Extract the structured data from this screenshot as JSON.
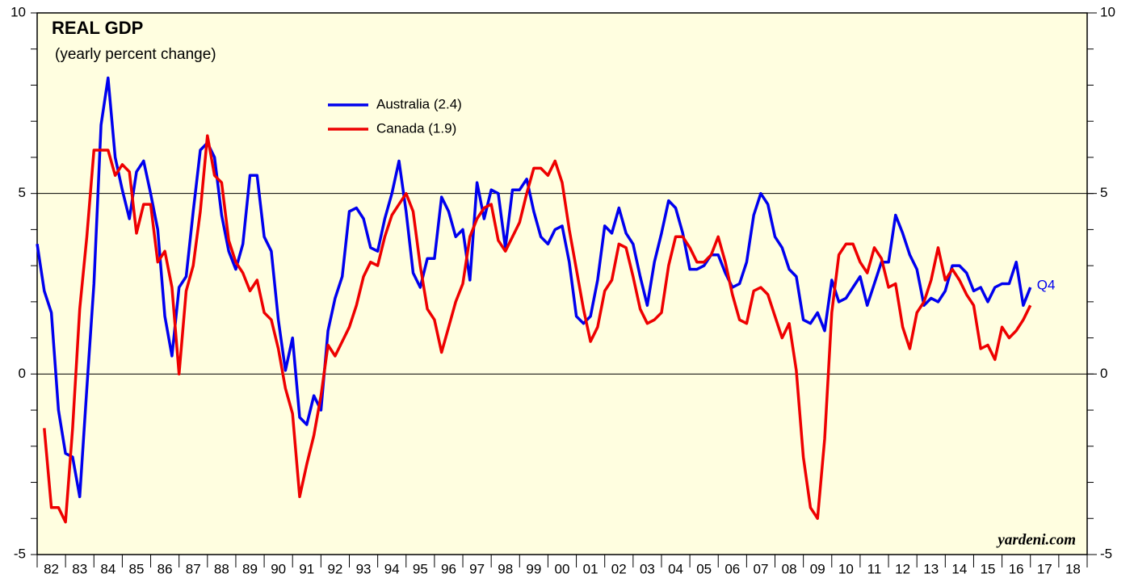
{
  "chart_data": {
    "type": "line",
    "title": "REAL GDP",
    "subtitle": "(yearly percent change)",
    "annotation": "Q4",
    "source": "yardeni.com",
    "x": [
      1982,
      1982.25,
      1982.5,
      1982.75,
      1983,
      1983.25,
      1983.5,
      1983.75,
      1984,
      1984.25,
      1984.5,
      1984.75,
      1985,
      1985.25,
      1985.5,
      1985.75,
      1986,
      1986.25,
      1986.5,
      1986.75,
      1987,
      1987.25,
      1987.5,
      1987.75,
      1988,
      1988.25,
      1988.5,
      1988.75,
      1989,
      1989.25,
      1989.5,
      1989.75,
      1990,
      1990.25,
      1990.5,
      1990.75,
      1991,
      1991.25,
      1991.5,
      1991.75,
      1992,
      1992.25,
      1992.5,
      1992.75,
      1993,
      1993.25,
      1993.5,
      1993.75,
      1994,
      1994.25,
      1994.5,
      1994.75,
      1995,
      1995.25,
      1995.5,
      1995.75,
      1996,
      1996.25,
      1996.5,
      1996.75,
      1997,
      1997.25,
      1997.5,
      1997.75,
      1998,
      1998.25,
      1998.5,
      1998.75,
      1999,
      1999.25,
      1999.5,
      1999.75,
      2000,
      2000.25,
      2000.5,
      2000.75,
      2001,
      2001.25,
      2001.5,
      2001.75,
      2002,
      2002.25,
      2002.5,
      2002.75,
      2003,
      2003.25,
      2003.5,
      2003.75,
      2004,
      2004.25,
      2004.5,
      2004.75,
      2005,
      2005.25,
      2005.5,
      2005.75,
      2006,
      2006.25,
      2006.5,
      2006.75,
      2007,
      2007.25,
      2007.5,
      2007.75,
      2008,
      2008.25,
      2008.5,
      2008.75,
      2009,
      2009.25,
      2009.5,
      2009.75,
      2010,
      2010.25,
      2010.5,
      2010.75,
      2011,
      2011.25,
      2011.5,
      2011.75,
      2012,
      2012.25,
      2012.5,
      2012.75,
      2013,
      2013.25,
      2013.5,
      2013.75,
      2014,
      2014.25,
      2014.5,
      2014.75,
      2015,
      2015.25,
      2015.5,
      2015.75,
      2016,
      2016.25,
      2016.5,
      2016.75,
      2017
    ],
    "series": [
      {
        "name": "Australia (2.4)",
        "color": "#0000ee",
        "values": [
          3.6,
          2.3,
          1.7,
          -1.0,
          -2.2,
          -2.3,
          -3.4,
          -0.4,
          2.5,
          6.9,
          8.2,
          6.0,
          5.1,
          4.3,
          5.6,
          5.9,
          5.0,
          4.0,
          1.6,
          0.5,
          2.4,
          2.7,
          4.5,
          6.2,
          6.4,
          6.0,
          4.4,
          3.4,
          2.9,
          3.6,
          5.5,
          5.5,
          3.8,
          3.4,
          1.5,
          0.1,
          1.0,
          -1.2,
          -1.4,
          -0.6,
          -1.0,
          1.2,
          2.1,
          2.7,
          4.5,
          4.6,
          4.3,
          3.5,
          3.4,
          4.3,
          5.0,
          5.9,
          4.5,
          2.8,
          2.4,
          3.2,
          3.2,
          4.9,
          4.5,
          3.8,
          4.0,
          2.6,
          5.3,
          4.3,
          5.1,
          5.0,
          3.5,
          5.1,
          5.1,
          5.4,
          4.5,
          3.8,
          3.6,
          4.0,
          4.1,
          3.1,
          1.6,
          1.4,
          1.6,
          2.6,
          4.1,
          3.9,
          4.6,
          3.9,
          3.6,
          2.7,
          1.9,
          3.1,
          3.9,
          4.8,
          4.6,
          3.9,
          2.9,
          2.9,
          3.0,
          3.3,
          3.3,
          2.8,
          2.4,
          2.5,
          3.1,
          4.4,
          5.0,
          4.7,
          3.8,
          3.5,
          2.9,
          2.7,
          1.5,
          1.4,
          1.7,
          1.2,
          2.6,
          2.0,
          2.1,
          2.4,
          2.7,
          1.9,
          2.5,
          3.1,
          3.1,
          4.4,
          3.9,
          3.3,
          2.9,
          1.9,
          2.1,
          2.0,
          2.3,
          3.0,
          3.0,
          2.8,
          2.3,
          2.4,
          2.0,
          2.4,
          2.5,
          2.5,
          3.1,
          1.9,
          2.4
        ]
      },
      {
        "name": "Canada (1.9)",
        "color": "#ee0000",
        "values": [
          null,
          -1.5,
          -3.7,
          -3.7,
          -4.1,
          -1.5,
          1.8,
          3.8,
          6.2,
          6.2,
          6.2,
          5.5,
          5.8,
          5.6,
          3.9,
          4.7,
          4.7,
          3.1,
          3.4,
          2.4,
          0.0,
          2.3,
          3.0,
          4.5,
          6.6,
          5.5,
          5.3,
          3.7,
          3.1,
          2.8,
          2.3,
          2.6,
          1.7,
          1.5,
          0.7,
          -0.4,
          -1.1,
          -3.4,
          -2.5,
          -1.7,
          -0.6,
          0.8,
          0.5,
          0.9,
          1.3,
          1.9,
          2.7,
          3.1,
          3.0,
          3.8,
          4.4,
          4.7,
          5.0,
          4.5,
          3.0,
          1.8,
          1.5,
          0.6,
          1.3,
          2.0,
          2.5,
          3.8,
          4.3,
          4.6,
          4.7,
          3.7,
          3.4,
          3.8,
          4.2,
          5.0,
          5.7,
          5.7,
          5.5,
          5.9,
          5.3,
          4.0,
          2.9,
          1.8,
          0.9,
          1.3,
          2.3,
          2.6,
          3.6,
          3.5,
          2.7,
          1.8,
          1.4,
          1.5,
          1.7,
          3.0,
          3.8,
          3.8,
          3.5,
          3.1,
          3.1,
          3.3,
          3.8,
          3.1,
          2.2,
          1.5,
          1.4,
          2.3,
          2.4,
          2.2,
          1.6,
          1.0,
          1.4,
          0.1,
          -2.3,
          -3.7,
          -4.0,
          -1.8,
          1.7,
          3.3,
          3.6,
          3.6,
          3.1,
          2.8,
          3.5,
          3.2,
          2.4,
          2.5,
          1.3,
          0.7,
          1.7,
          2.0,
          2.6,
          3.5,
          2.6,
          2.9,
          2.6,
          2.2,
          1.9,
          0.7,
          0.8,
          0.4,
          1.3,
          1.0,
          1.2,
          1.5,
          1.9
        ]
      }
    ],
    "xlim": [
      1982,
      2019
    ],
    "xticks": [
      {
        "value": 1982.5,
        "label": "82"
      },
      {
        "value": 1983.5,
        "label": "83"
      },
      {
        "value": 1984.5,
        "label": "84"
      },
      {
        "value": 1985.5,
        "label": "85"
      },
      {
        "value": 1986.5,
        "label": "86"
      },
      {
        "value": 1987.5,
        "label": "87"
      },
      {
        "value": 1988.5,
        "label": "88"
      },
      {
        "value": 1989.5,
        "label": "89"
      },
      {
        "value": 1990.5,
        "label": "90"
      },
      {
        "value": 1991.5,
        "label": "91"
      },
      {
        "value": 1992.5,
        "label": "92"
      },
      {
        "value": 1993.5,
        "label": "93"
      },
      {
        "value": 1994.5,
        "label": "94"
      },
      {
        "value": 1995.5,
        "label": "95"
      },
      {
        "value": 1996.5,
        "label": "96"
      },
      {
        "value": 1997.5,
        "label": "97"
      },
      {
        "value": 1998.5,
        "label": "98"
      },
      {
        "value": 1999.5,
        "label": "99"
      },
      {
        "value": 2000.5,
        "label": "00"
      },
      {
        "value": 2001.5,
        "label": "01"
      },
      {
        "value": 2002.5,
        "label": "02"
      },
      {
        "value": 2003.5,
        "label": "03"
      },
      {
        "value": 2004.5,
        "label": "04"
      },
      {
        "value": 2005.5,
        "label": "05"
      },
      {
        "value": 2006.5,
        "label": "06"
      },
      {
        "value": 2007.5,
        "label": "07"
      },
      {
        "value": 2008.5,
        "label": "08"
      },
      {
        "value": 2009.5,
        "label": "09"
      },
      {
        "value": 2010.5,
        "label": "10"
      },
      {
        "value": 2011.5,
        "label": "11"
      },
      {
        "value": 2012.5,
        "label": "12"
      },
      {
        "value": 2013.5,
        "label": "13"
      },
      {
        "value": 2014.5,
        "label": "14"
      },
      {
        "value": 2015.5,
        "label": "15"
      },
      {
        "value": 2016.5,
        "label": "16"
      },
      {
        "value": 2017.5,
        "label": "17"
      },
      {
        "value": 2018.5,
        "label": "18"
      }
    ],
    "ylim": [
      -5,
      10
    ],
    "yticks": [
      -5,
      0,
      5,
      10
    ],
    "background": "#fffee0"
  }
}
